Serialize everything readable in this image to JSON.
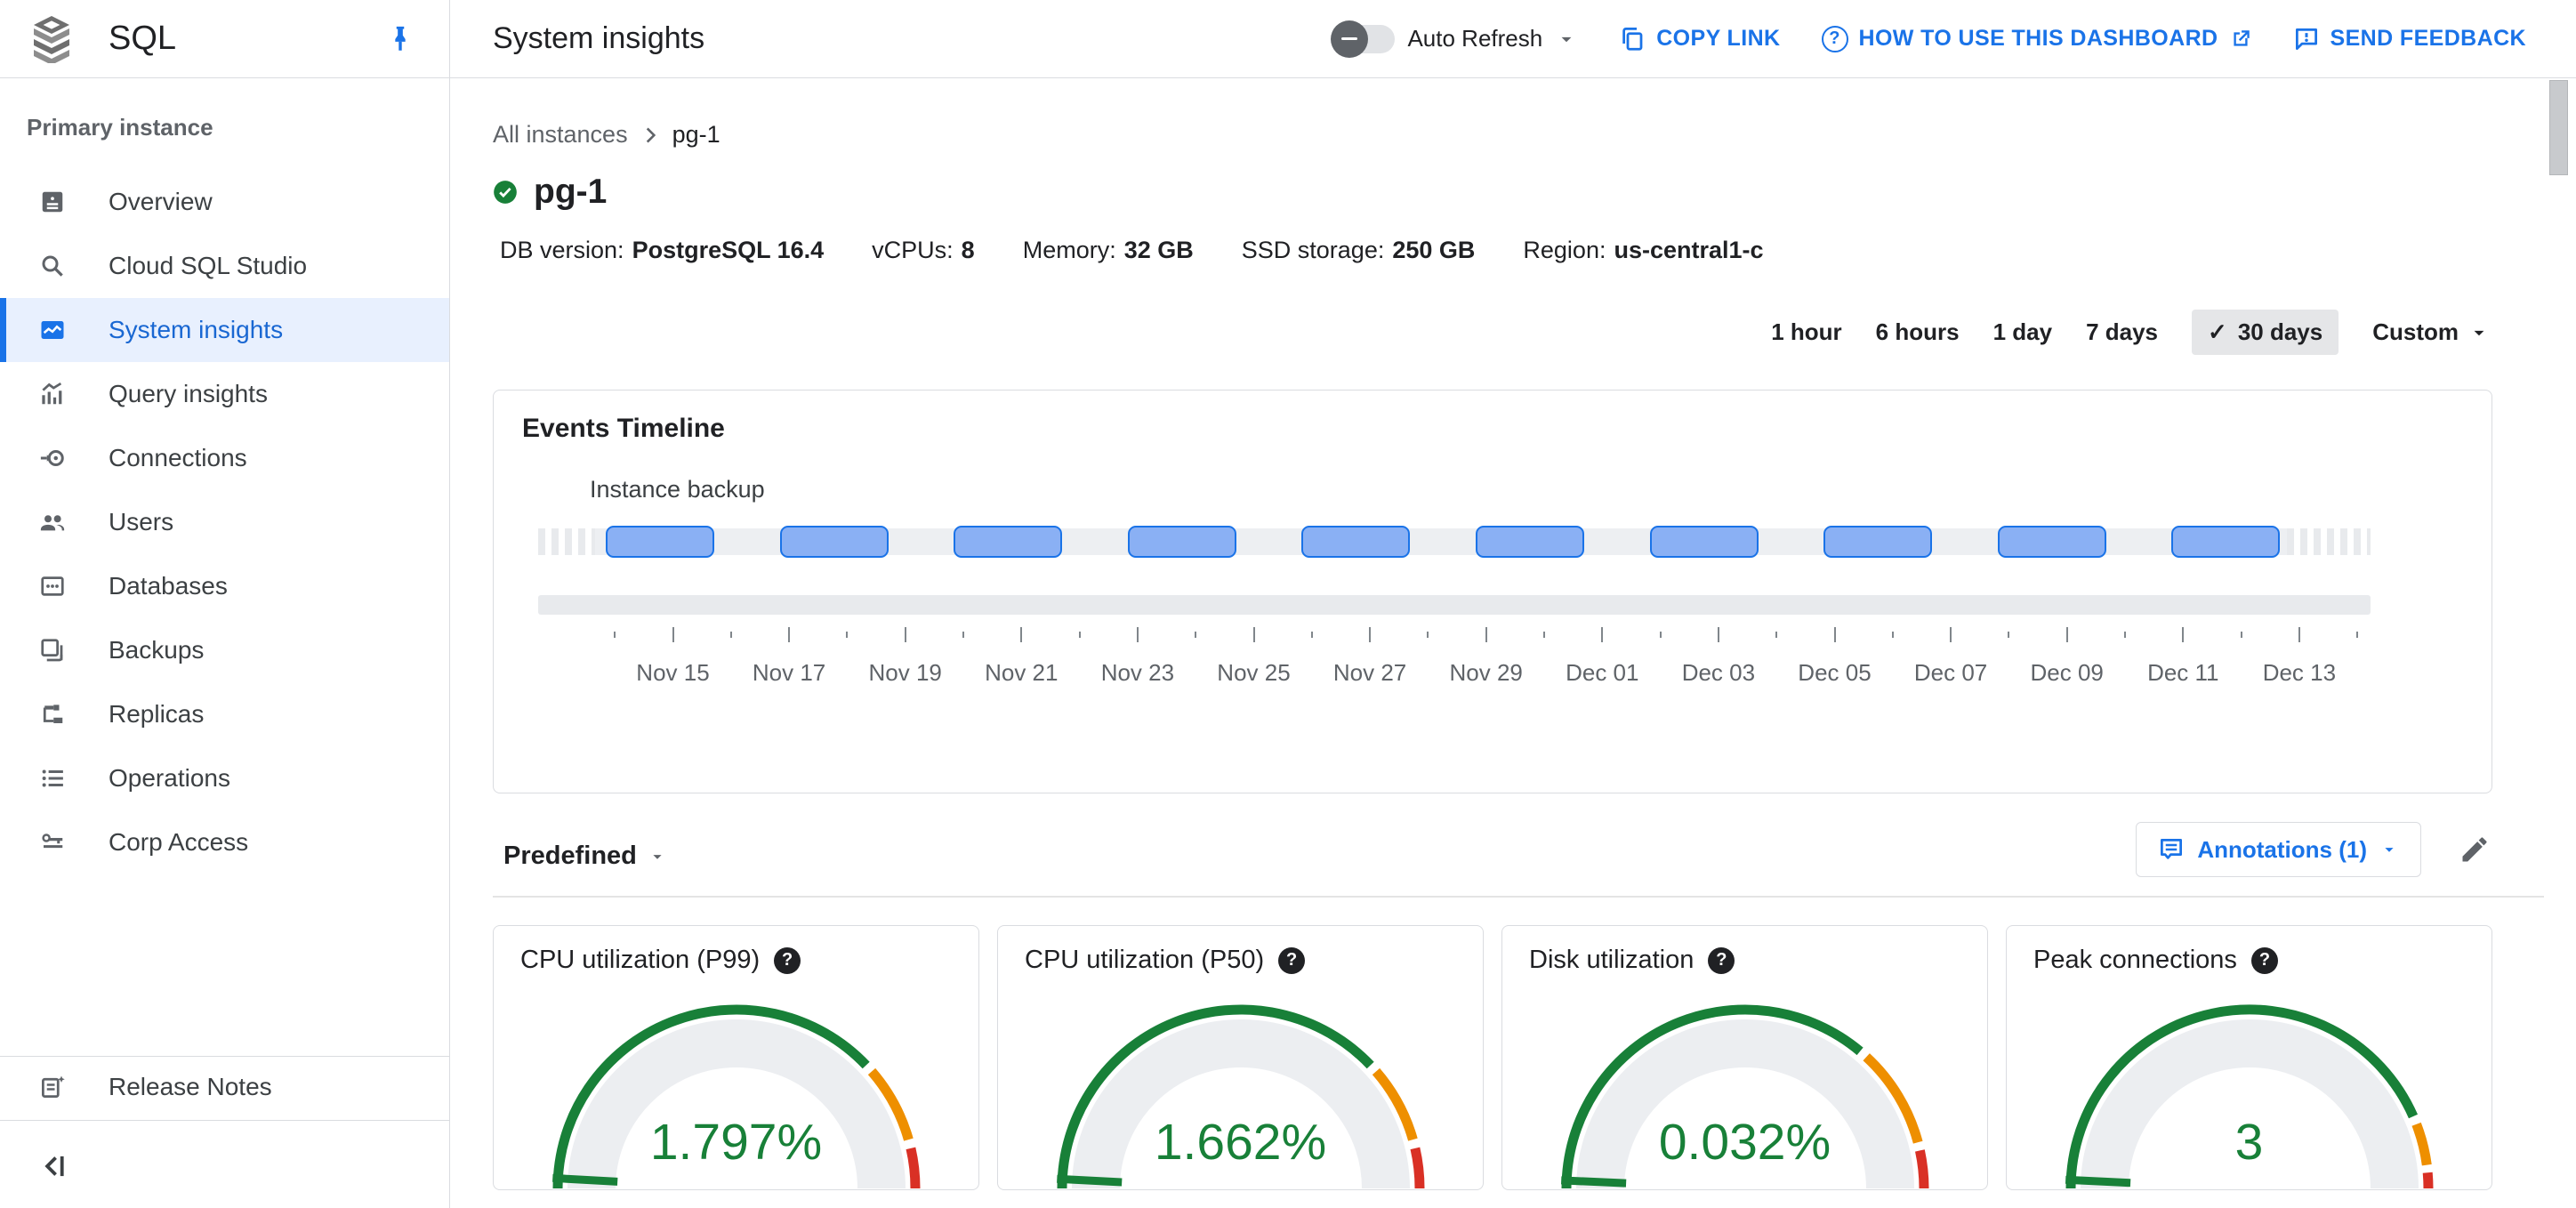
{
  "header": {
    "app_name": "SQL",
    "title": "System insights",
    "auto_refresh_label": "Auto Refresh",
    "copy_link": "COPY LINK",
    "how_to": "HOW TO USE THIS DASHBOARD",
    "send_feedback": "SEND FEEDBACK"
  },
  "icons": {
    "help": "?"
  },
  "sidebar": {
    "section": "Primary instance",
    "items": [
      "Overview",
      "Cloud SQL Studio",
      "System insights",
      "Query insights",
      "Connections",
      "Users",
      "Databases",
      "Backups",
      "Replicas",
      "Operations",
      "Corp Access"
    ],
    "selected": "System insights",
    "release_notes": "Release Notes"
  },
  "breadcrumb": {
    "parent": "All instances",
    "current": "pg-1"
  },
  "instance": {
    "name": "pg-1",
    "status": "healthy",
    "meta": [
      {
        "label": "DB version:",
        "value": "PostgreSQL 16.4"
      },
      {
        "label": "vCPUs:",
        "value": "8"
      },
      {
        "label": "Memory:",
        "value": "32 GB"
      },
      {
        "label": "SSD storage:",
        "value": "250 GB"
      },
      {
        "label": "Region:",
        "value": "us-central1-c"
      }
    ]
  },
  "time_range": {
    "options": [
      "1 hour",
      "6 hours",
      "1 day",
      "7 days",
      "30 days",
      "Custom"
    ],
    "selected": "30 days",
    "check": "✓"
  },
  "events": {
    "title": "Events Timeline",
    "series_label": "Instance backup",
    "bar_count": 10,
    "dates": [
      "Nov 15",
      "Nov 17",
      "Nov 19",
      "Nov 21",
      "Nov 23",
      "Nov 25",
      "Nov 27",
      "Nov 29",
      "Dec 01",
      "Dec 03",
      "Dec 05",
      "Dec 07",
      "Dec 09",
      "Dec 11",
      "Dec 13"
    ]
  },
  "controls": {
    "predefined": "Predefined",
    "annotations": "Annotations (1)"
  },
  "gauges": [
    {
      "title": "CPU utilization (P99)",
      "value": "1.797%",
      "needle": 0.018,
      "segments": [
        [
          0,
          0.758
        ],
        [
          0.773,
          0.912
        ],
        [
          0.928,
          1
        ]
      ]
    },
    {
      "title": "CPU utilization (P50)",
      "value": "1.662%",
      "needle": 0.0166,
      "segments": [
        [
          0,
          0.758
        ],
        [
          0.773,
          0.912
        ],
        [
          0.928,
          1
        ]
      ]
    },
    {
      "title": "Disk utilization",
      "value": "0.032%",
      "needle": 0.012,
      "segments": [
        [
          0,
          0.722
        ],
        [
          0.737,
          0.917
        ],
        [
          0.932,
          1
        ]
      ]
    },
    {
      "title": "Peak connections",
      "value": "3",
      "needle": 0.015,
      "segments": [
        [
          0,
          0.868
        ],
        [
          0.883,
          0.958
        ],
        [
          0.972,
          1
        ]
      ]
    }
  ],
  "colors": {
    "accent": "#1a73e8",
    "selected_nav_bg": "#e8f0fe",
    "selected_nav_text": "#1967d2",
    "gauge": [
      "#188038",
      "#ee8f00",
      "#d93025"
    ],
    "gauge_track": "#eceef1",
    "bar_fill": "#8ab0f4",
    "bar_border": "#1a73e8",
    "status_green": "#188038",
    "gray_text": "#5f6368"
  },
  "chart_data": {
    "type": "table",
    "title": "Events Timeline",
    "series": [
      {
        "name": "Instance backup",
        "values": [
          1,
          1,
          1,
          1,
          1,
          1,
          1,
          1,
          1,
          1
        ]
      }
    ],
    "x": [
      "Nov 15",
      "Nov 17",
      "Nov 19",
      "Nov 21",
      "Nov 23",
      "Nov 25",
      "Nov 27",
      "Nov 29",
      "Dec 01",
      "Dec 03",
      "Dec 05",
      "Dec 07",
      "Dec 09",
      "Dec 11",
      "Dec 13"
    ]
  }
}
